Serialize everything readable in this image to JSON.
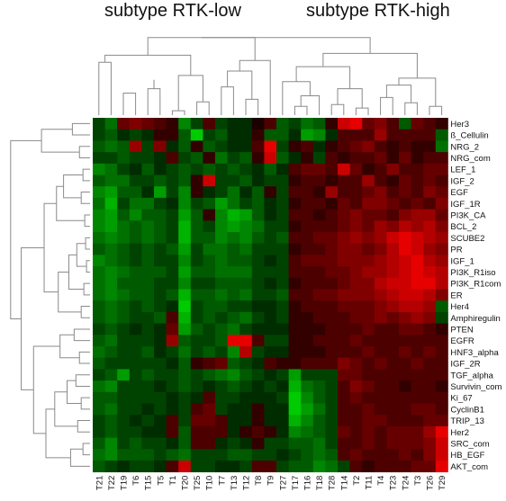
{
  "chart_data": {
    "type": "heatmap",
    "title": "",
    "xlabel": "",
    "ylabel": "",
    "group_labels": [
      "subtype RTK-low",
      "subtype RTK-high"
    ],
    "columns": [
      "T21",
      "T22",
      "T19",
      "T6",
      "T15",
      "T5",
      "T1",
      "T20",
      "T25",
      "T10",
      "T7",
      "T13",
      "T12",
      "T8",
      "T9",
      "T27",
      "T17",
      "T16",
      "T18",
      "T28",
      "T14",
      "T2",
      "T11",
      "T4",
      "T23",
      "T24",
      "T3",
      "T26",
      "T29"
    ],
    "rows": [
      "Her3",
      "ß_Cellulin",
      "NRG_2",
      "NRG_com",
      "LEF_1",
      "IGF_2",
      "EGF",
      "IGF_1R",
      "PI3K_CA",
      "BCL_2",
      "SCUBE2",
      "PR",
      "IGF_1",
      "PI3K_R1iso",
      "PI3K_R1com",
      "ER",
      "Her4",
      "Amphiregulin",
      "PTEN",
      "EGFR",
      "HNF3_alpha",
      "IGF_2R",
      "TGF_alpha",
      "Survivin_com",
      "Ki_67",
      "CyclinB1",
      "TRIP_13",
      "Her2",
      "SRC_com",
      "HB_EGF",
      "AKT_com"
    ],
    "value_range": [
      -1,
      1
    ],
    "colors": {
      "low": "#00e000",
      "mid": "#000000",
      "high": "#ff0000"
    },
    "values": [
      [
        -0.3,
        -0.5,
        0.4,
        0.5,
        0.4,
        0.3,
        0.2,
        -0.6,
        -0.3,
        0.3,
        -0.3,
        -0.2,
        -0.2,
        0.1,
        0.3,
        -0.4,
        -0.3,
        -0.5,
        -0.4,
        0.2,
        0.8,
        0.9,
        0.4,
        0.5,
        0.3,
        -0.4,
        0.4,
        0.3,
        0.2
      ],
      [
        -0.3,
        -0.4,
        -0.2,
        -0.3,
        -0.2,
        0.2,
        0.2,
        -0.4,
        -0.9,
        -0.3,
        -0.4,
        -0.2,
        -0.2,
        0.2,
        -0.4,
        -0.4,
        -0.2,
        -0.7,
        -0.6,
        -0.2,
        0.3,
        0.3,
        0.3,
        0.6,
        0.3,
        0.3,
        0.3,
        0.3,
        -0.4
      ],
      [
        -0.4,
        -0.5,
        -0.4,
        0.6,
        -0.3,
        0.5,
        -0.2,
        -0.4,
        0.2,
        -0.4,
        -0.3,
        -0.2,
        -0.2,
        0.3,
        0.9,
        -0.3,
        0.2,
        0.3,
        -0.2,
        0.2,
        0.3,
        0.4,
        0.5,
        0.3,
        0.2,
        0.3,
        0.2,
        0.2,
        -0.5
      ],
      [
        -0.3,
        -0.3,
        -0.4,
        -0.3,
        -0.3,
        -0.2,
        0.3,
        -0.3,
        -0.4,
        0.2,
        -0.5,
        -0.3,
        -0.4,
        0.2,
        0.8,
        -0.4,
        -0.2,
        0.2,
        -0.3,
        0.3,
        0.2,
        0.3,
        0.3,
        0.4,
        0.2,
        0.4,
        0.2,
        0.3,
        0.3
      ],
      [
        -0.6,
        -0.5,
        -0.3,
        -0.2,
        -0.4,
        -0.2,
        -0.3,
        -0.4,
        -0.3,
        -0.4,
        -0.3,
        -0.4,
        -0.3,
        -0.2,
        -0.4,
        -0.2,
        0.3,
        0.4,
        0.4,
        0.3,
        0.8,
        0.4,
        0.2,
        0.3,
        0.5,
        0.3,
        0.3,
        0.4,
        0.4
      ],
      [
        -0.4,
        -0.5,
        -0.5,
        -0.3,
        -0.3,
        -0.4,
        -0.3,
        -0.4,
        0.2,
        0.8,
        -0.3,
        -0.3,
        -0.4,
        -0.2,
        -0.3,
        -0.3,
        0.2,
        0.3,
        0.3,
        0.2,
        0.3,
        0.3,
        0.6,
        0.3,
        0.2,
        0.4,
        0.3,
        0.4,
        0.3
      ],
      [
        -0.6,
        -0.7,
        -0.4,
        -0.4,
        -0.2,
        -0.7,
        -0.3,
        -0.6,
        0.2,
        -0.2,
        -0.3,
        -0.5,
        -0.2,
        -0.4,
        0.2,
        -0.3,
        0.3,
        0.3,
        0.2,
        0.6,
        0.3,
        0.3,
        0.4,
        0.5,
        0.3,
        0.4,
        0.3,
        0.5,
        0.4
      ],
      [
        -0.5,
        -0.8,
        -0.3,
        -0.5,
        -0.5,
        -0.3,
        -0.2,
        -0.6,
        -0.3,
        -0.4,
        -0.7,
        -0.5,
        -0.3,
        -0.4,
        -0.2,
        -0.3,
        0.2,
        0.3,
        0.3,
        0.2,
        0.4,
        0.3,
        0.5,
        0.5,
        0.4,
        0.3,
        0.4,
        0.3,
        0.5
      ],
      [
        -0.6,
        -0.7,
        -0.4,
        -0.6,
        -0.4,
        -0.4,
        -0.3,
        -0.7,
        -0.4,
        0.2,
        -0.6,
        -0.8,
        -0.7,
        -0.4,
        -0.2,
        -0.3,
        0.3,
        0.3,
        0.2,
        0.3,
        0.4,
        0.5,
        0.4,
        0.4,
        0.3,
        0.5,
        0.6,
        0.6,
        0.4
      ],
      [
        -0.6,
        -0.7,
        -0.5,
        -0.4,
        -0.5,
        -0.4,
        -0.3,
        -0.8,
        -0.4,
        -0.3,
        -0.6,
        -0.7,
        -0.6,
        -0.5,
        -0.3,
        -0.3,
        0.2,
        0.3,
        0.3,
        0.3,
        0.4,
        0.5,
        0.4,
        0.6,
        0.5,
        0.7,
        0.6,
        0.7,
        0.5
      ],
      [
        -0.5,
        -0.6,
        -0.5,
        -0.4,
        -0.5,
        -0.4,
        -0.3,
        -0.8,
        -0.4,
        -0.4,
        -0.6,
        -0.5,
        -0.6,
        -0.4,
        -0.3,
        -0.4,
        0.3,
        0.3,
        0.4,
        0.4,
        0.5,
        0.6,
        0.5,
        0.6,
        0.8,
        0.9,
        0.8,
        0.7,
        0.6
      ],
      [
        -0.4,
        -0.5,
        -0.4,
        -0.3,
        -0.4,
        -0.3,
        -0.4,
        -0.7,
        -0.3,
        -0.5,
        -0.5,
        -0.4,
        -0.5,
        -0.3,
        -0.3,
        -0.3,
        0.2,
        0.3,
        0.3,
        0.4,
        0.5,
        0.5,
        0.4,
        0.5,
        0.7,
        0.9,
        0.8,
        0.6,
        0.5
      ],
      [
        -0.6,
        -0.5,
        -0.4,
        -0.3,
        -0.4,
        -0.3,
        -0.3,
        -0.6,
        -0.3,
        -0.4,
        -0.5,
        -0.4,
        -0.4,
        -0.3,
        -0.2,
        -0.3,
        0.3,
        0.4,
        0.4,
        0.4,
        0.5,
        0.5,
        0.5,
        0.6,
        0.7,
        0.8,
        0.9,
        0.7,
        0.6
      ],
      [
        -0.5,
        -0.6,
        -0.5,
        -0.4,
        -0.4,
        -0.4,
        -0.3,
        -0.7,
        -0.4,
        -0.4,
        -0.5,
        -0.5,
        -0.5,
        -0.3,
        -0.3,
        -0.3,
        0.3,
        0.3,
        0.3,
        0.4,
        0.4,
        0.5,
        0.6,
        0.6,
        0.7,
        0.8,
        0.9,
        0.8,
        0.7
      ],
      [
        -0.5,
        -0.6,
        -0.4,
        -0.4,
        -0.4,
        -0.3,
        -0.3,
        -0.6,
        -0.3,
        -0.3,
        -0.4,
        -0.4,
        -0.4,
        -0.3,
        -0.2,
        -0.3,
        0.2,
        0.3,
        0.3,
        0.3,
        0.4,
        0.5,
        0.5,
        0.7,
        0.8,
        0.8,
        0.9,
        0.9,
        0.7
      ],
      [
        -0.5,
        -0.6,
        -0.5,
        -0.4,
        -0.4,
        -0.3,
        -0.4,
        -0.8,
        -0.4,
        -0.4,
        -0.5,
        -0.4,
        -0.5,
        -0.3,
        -0.3,
        -0.4,
        0.3,
        0.3,
        0.4,
        0.4,
        0.5,
        0.5,
        0.5,
        0.6,
        0.7,
        0.8,
        0.8,
        0.7,
        0.5
      ],
      [
        -0.4,
        -0.5,
        -0.4,
        -0.3,
        -0.4,
        -0.3,
        -0.2,
        -0.9,
        -0.3,
        -0.4,
        -0.4,
        -0.3,
        -0.3,
        -0.2,
        -0.2,
        -0.3,
        0.2,
        0.3,
        0.3,
        0.3,
        0.4,
        0.4,
        0.4,
        0.5,
        0.6,
        0.7,
        0.7,
        0.6,
        -0.4
      ],
      [
        -0.4,
        -0.5,
        -0.4,
        -0.3,
        -0.3,
        -0.4,
        0.3,
        -0.8,
        -0.3,
        -0.4,
        -0.3,
        -0.4,
        -0.5,
        -0.3,
        -0.2,
        -0.3,
        0.2,
        0.2,
        0.3,
        0.3,
        0.3,
        0.4,
        0.4,
        0.5,
        0.4,
        0.5,
        0.6,
        0.5,
        -0.3
      ],
      [
        -0.3,
        -0.4,
        -0.3,
        -0.2,
        -0.3,
        -0.2,
        0.4,
        -0.7,
        -0.4,
        -0.3,
        -0.4,
        -0.5,
        -0.3,
        -0.2,
        -0.2,
        -0.2,
        0.2,
        0.2,
        0.2,
        0.3,
        0.3,
        0.3,
        0.4,
        0.3,
        0.3,
        0.4,
        0.4,
        0.3,
        0.2
      ],
      [
        -0.4,
        -0.5,
        -0.3,
        -0.3,
        -0.3,
        -0.2,
        0.6,
        -0.4,
        -0.3,
        -0.3,
        -0.4,
        0.9,
        0.9,
        0.3,
        -0.3,
        -0.3,
        0.2,
        0.2,
        0.3,
        0.3,
        0.3,
        0.4,
        0.3,
        0.3,
        0.3,
        0.3,
        0.3,
        0.3,
        0.3
      ],
      [
        -0.5,
        -0.4,
        -0.3,
        -0.3,
        -0.4,
        -0.2,
        -0.3,
        -0.5,
        -0.3,
        -0.4,
        -0.3,
        -0.6,
        0.7,
        -0.3,
        -0.2,
        -0.2,
        0.2,
        0.2,
        0.2,
        0.3,
        0.3,
        0.3,
        0.4,
        0.3,
        0.3,
        0.4,
        0.3,
        0.4,
        0.3
      ],
      [
        -0.4,
        -0.3,
        -0.3,
        -0.3,
        -0.3,
        -0.3,
        -0.2,
        -0.4,
        0.2,
        0.3,
        0.4,
        -0.4,
        -0.3,
        -0.2,
        0.3,
        0.2,
        0.2,
        0.3,
        0.3,
        0.3,
        0.5,
        0.4,
        0.3,
        0.4,
        0.3,
        0.3,
        0.4,
        0.3,
        0.3
      ],
      [
        -0.3,
        -0.4,
        -0.7,
        -0.3,
        -0.4,
        -0.3,
        -0.3,
        -0.4,
        -0.3,
        -0.4,
        -0.5,
        -0.6,
        -0.4,
        -0.3,
        -0.2,
        -0.3,
        -0.7,
        -0.3,
        -0.3,
        -0.3,
        0.4,
        0.4,
        0.3,
        0.3,
        0.3,
        0.3,
        0.3,
        0.3,
        0.3
      ],
      [
        -0.5,
        -0.6,
        -0.3,
        -0.3,
        -0.3,
        -0.2,
        -0.3,
        -0.4,
        -0.3,
        -0.2,
        -0.3,
        -0.4,
        -0.3,
        -0.2,
        -0.3,
        -0.2,
        -0.8,
        -0.5,
        -0.4,
        -0.3,
        0.3,
        0.5,
        0.4,
        0.3,
        0.3,
        0.2,
        0.3,
        0.3,
        0.2
      ],
      [
        -0.4,
        -0.4,
        -0.3,
        -0.3,
        -0.3,
        -0.3,
        -0.2,
        -0.3,
        -0.2,
        0.3,
        -0.3,
        -0.3,
        -0.2,
        -0.2,
        -0.2,
        -0.3,
        -0.9,
        -0.6,
        -0.4,
        -0.3,
        0.3,
        0.4,
        0.3,
        0.3,
        0.3,
        0.3,
        0.3,
        0.3,
        0.3
      ],
      [
        -0.4,
        -0.5,
        -0.3,
        -0.3,
        -0.2,
        -0.3,
        -0.2,
        -0.3,
        0.3,
        0.4,
        -0.3,
        -0.2,
        -0.2,
        0.2,
        -0.2,
        -0.2,
        -0.9,
        -0.7,
        -0.5,
        -0.3,
        0.3,
        0.3,
        0.4,
        0.3,
        0.3,
        0.3,
        0.4,
        0.4,
        0.3
      ],
      [
        -0.3,
        -0.4,
        -0.3,
        -0.2,
        -0.3,
        -0.2,
        0.3,
        -0.3,
        0.4,
        0.4,
        0.3,
        -0.2,
        -0.2,
        0.2,
        -0.2,
        -0.2,
        -0.8,
        -0.6,
        -0.4,
        -0.3,
        0.3,
        0.3,
        0.4,
        0.4,
        0.3,
        0.3,
        0.3,
        0.4,
        0.4
      ],
      [
        -0.3,
        -0.4,
        -0.3,
        -0.3,
        -0.2,
        -0.2,
        0.3,
        -0.4,
        0.3,
        0.3,
        0.3,
        -0.2,
        0.2,
        0.3,
        0.2,
        -0.2,
        -0.6,
        -0.5,
        -0.4,
        -0.3,
        0.4,
        0.3,
        0.4,
        0.3,
        0.4,
        0.4,
        0.4,
        0.6,
        0.9
      ],
      [
        -0.4,
        -0.6,
        -0.3,
        -0.4,
        -0.3,
        -0.3,
        -0.2,
        -0.4,
        0.3,
        0.3,
        -0.2,
        -0.3,
        -0.2,
        0.2,
        -0.3,
        -0.3,
        -0.4,
        -0.4,
        -0.5,
        -0.3,
        0.3,
        0.3,
        0.4,
        0.3,
        0.4,
        0.4,
        0.4,
        0.5,
        0.8
      ],
      [
        -0.5,
        -0.6,
        -0.4,
        -0.4,
        -0.4,
        -0.3,
        -0.4,
        -0.5,
        -0.3,
        -0.3,
        -0.3,
        -0.4,
        -0.4,
        -0.3,
        -0.3,
        -0.2,
        -0.3,
        -0.4,
        -0.5,
        -0.4,
        0.3,
        0.4,
        0.3,
        0.3,
        0.3,
        0.4,
        0.3,
        0.5,
        0.8
      ],
      [
        -0.4,
        -0.3,
        -0.2,
        -0.3,
        -0.3,
        -0.2,
        0.3,
        0.8,
        -0.3,
        -0.3,
        -0.2,
        -0.2,
        -0.3,
        0.3,
        0.3,
        -0.3,
        -0.4,
        -0.4,
        -0.6,
        -0.5,
        -0.3,
        0.3,
        0.2,
        0.3,
        0.3,
        0.3,
        0.4,
        0.4,
        0.9
      ]
    ],
    "legend": "none",
    "grid": false
  }
}
